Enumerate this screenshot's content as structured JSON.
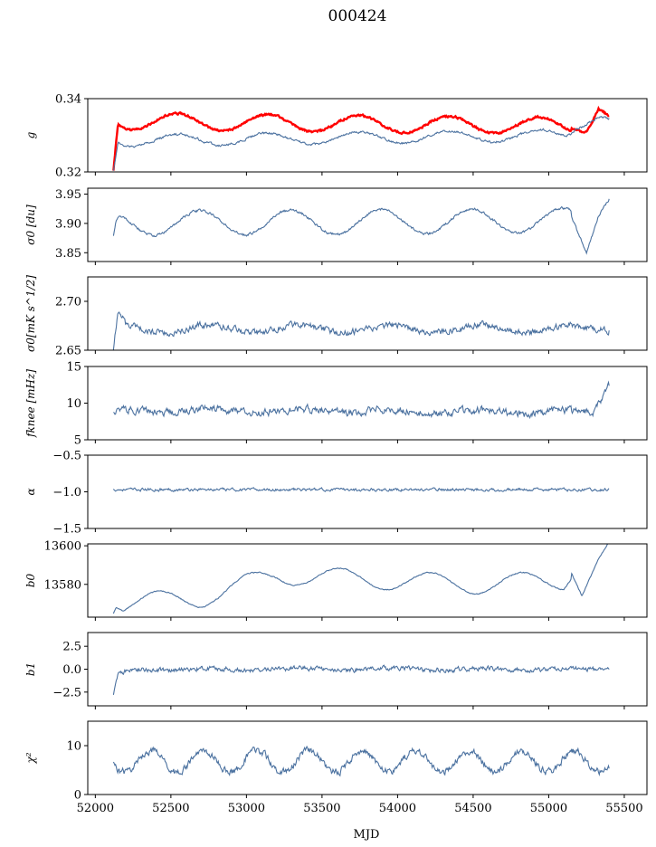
{
  "figure": {
    "title": "000424",
    "xlabel": "MJD"
  },
  "colors": {
    "series_main": "#4c72a0",
    "series_red": "#ff0000",
    "axis": "#000000"
  },
  "chart_data": [
    {
      "type": "line",
      "id": "g",
      "ylabel": "g",
      "ylim": [
        0.32,
        0.34
      ],
      "yticks": [
        "0.34",
        "0.32"
      ],
      "xlim": [
        51950,
        55650
      ],
      "series": [
        {
          "name": "g (red)",
          "color": "#ff0000",
          "x_start": 52120,
          "x_end": 55400,
          "base": 0.3298,
          "amp": 0.0023,
          "period": 600,
          "phase": 0.35,
          "noise": 0.0005,
          "trend": [
            [
              52120,
              0.3205
            ],
            [
              52150,
              0.3338
            ],
            [
              55100,
              0.3326
            ],
            [
              55250,
              0.3318
            ],
            [
              55330,
              0.3378
            ],
            [
              55400,
              0.3352
            ]
          ]
        },
        {
          "name": "g (blue)",
          "color": "#4c72a0",
          "x_start": 52120,
          "x_end": 55400,
          "base": 0.3275,
          "amp": 0.0016,
          "period": 600,
          "phase": 0.35,
          "noise": 0.0006,
          "trend": [
            [
              52120,
              0.3205
            ],
            [
              52150,
              0.3285
            ],
            [
              55100,
              0.33
            ],
            [
              55330,
              0.3355
            ],
            [
              55400,
              0.3345
            ]
          ]
        }
      ]
    },
    {
      "type": "line",
      "id": "sigma0_du",
      "ylabel": "σ0 [du]",
      "ylim": [
        3.835,
        3.96
      ],
      "yticks": [
        "3.95",
        "3.90",
        "3.85"
      ],
      "xlim": [
        51950,
        55650
      ],
      "series": [
        {
          "name": "sigma0 du",
          "color": "#4c72a0",
          "x_start": 52120,
          "x_end": 55400,
          "base": 3.872,
          "amp": 0.021,
          "period": 600,
          "phase": 0.1,
          "noise": 0.004,
          "trend": [
            [
              52120,
              3.88
            ],
            [
              52140,
              3.9
            ],
            [
              55150,
              3.905
            ],
            [
              55250,
              3.85
            ],
            [
              55330,
              3.92
            ],
            [
              55400,
              3.95
            ]
          ]
        }
      ]
    },
    {
      "type": "line",
      "id": "sigma0_mk",
      "ylabel": "σ0[mK s^1/2]",
      "ylim": [
        2.65,
        2.725
      ],
      "yticks": [
        "2.70",
        "2.65"
      ],
      "xlim": [
        51950,
        55650
      ],
      "series": [
        {
          "name": "sigma0 mK",
          "color": "#4c72a0",
          "x_start": 52120,
          "x_end": 55400,
          "base": 2.677,
          "amp": 0.004,
          "period": 600,
          "phase": 0.0,
          "noise": 0.006,
          "trend": [
            [
              52120,
              2.652
            ],
            [
              52150,
              2.69
            ],
            [
              52200,
              2.672
            ],
            [
              55400,
              2.672
            ]
          ]
        }
      ]
    },
    {
      "type": "line",
      "id": "fknee",
      "ylabel": "fknee [mHz]",
      "ylim": [
        5,
        15
      ],
      "yticks": [
        "15",
        "10",
        "5"
      ],
      "xlim": [
        51950,
        55650
      ],
      "series": [
        {
          "name": "fknee",
          "color": "#4c72a0",
          "x_start": 52120,
          "x_end": 55400,
          "base": 9.0,
          "amp": 0.3,
          "period": 600,
          "phase": 0.0,
          "noise": 0.9,
          "trend": [
            [
              52120,
              9.0
            ],
            [
              55300,
              8.8
            ],
            [
              55360,
              11.0
            ],
            [
              55400,
              12.5
            ]
          ]
        }
      ]
    },
    {
      "type": "line",
      "id": "alpha",
      "ylabel": "α",
      "ylim": [
        -1.5,
        -0.5
      ],
      "yticks": [
        "-0.5",
        "-1.0",
        "-1.5"
      ],
      "xlim": [
        51950,
        55650
      ],
      "series": [
        {
          "name": "alpha",
          "color": "#4c72a0",
          "x_start": 52120,
          "x_end": 55400,
          "base": -0.97,
          "amp": 0.0,
          "period": 600,
          "phase": 0.0,
          "noise": 0.035,
          "trend": []
        }
      ]
    },
    {
      "type": "line",
      "id": "b0",
      "ylabel": "b0",
      "ylim": [
        13563,
        13601
      ],
      "yticks": [
        "13600",
        "13580"
      ],
      "xlim": [
        51950,
        55650
      ],
      "series": [
        {
          "name": "b0",
          "color": "#4c72a0",
          "x_start": 52120,
          "x_end": 55400,
          "base": 13578,
          "amp": 5,
          "period": 600,
          "phase": 0.55,
          "noise": 0.5,
          "trend": [
            [
              52120,
              13565
            ],
            [
              52140,
              13570
            ],
            [
              52700,
              13573
            ],
            [
              53200,
              13585
            ],
            [
              54500,
              13580
            ],
            [
              55100,
              13582
            ],
            [
              55150,
              13588
            ],
            [
              55220,
              13575
            ],
            [
              55330,
              13592
            ],
            [
              55400,
              13600
            ]
          ]
        }
      ]
    },
    {
      "type": "line",
      "id": "b1",
      "ylabel": "b1",
      "ylim": [
        -4,
        4
      ],
      "yticks": [
        "2.5",
        "0.0",
        "-2.5"
      ],
      "xlim": [
        51950,
        55650
      ],
      "series": [
        {
          "name": "b1",
          "color": "#4c72a0",
          "x_start": 52120,
          "x_end": 55400,
          "base": 0.0,
          "amp": 0.1,
          "period": 600,
          "phase": 0.0,
          "noise": 0.45,
          "trend": [
            [
              52120,
              -2.7
            ],
            [
              52150,
              -0.6
            ],
            [
              52250,
              0.0
            ],
            [
              55400,
              0.0
            ]
          ]
        }
      ]
    },
    {
      "type": "line",
      "id": "chi2",
      "ylabel": "χ²",
      "ylim": [
        0,
        15
      ],
      "yticks": [
        "10",
        "0"
      ],
      "xlim": [
        51950,
        55650
      ],
      "xticks": [
        "52000",
        "52500",
        "53000",
        "53500",
        "54000",
        "54500",
        "55000",
        "55500"
      ],
      "series": [
        {
          "name": "chi2",
          "color": "#4c72a0",
          "x_start": 52120,
          "x_end": 55400,
          "base": 6.8,
          "amp": 2.2,
          "period": 350,
          "phase": 0.2,
          "noise": 1.3,
          "trend": []
        }
      ]
    }
  ]
}
